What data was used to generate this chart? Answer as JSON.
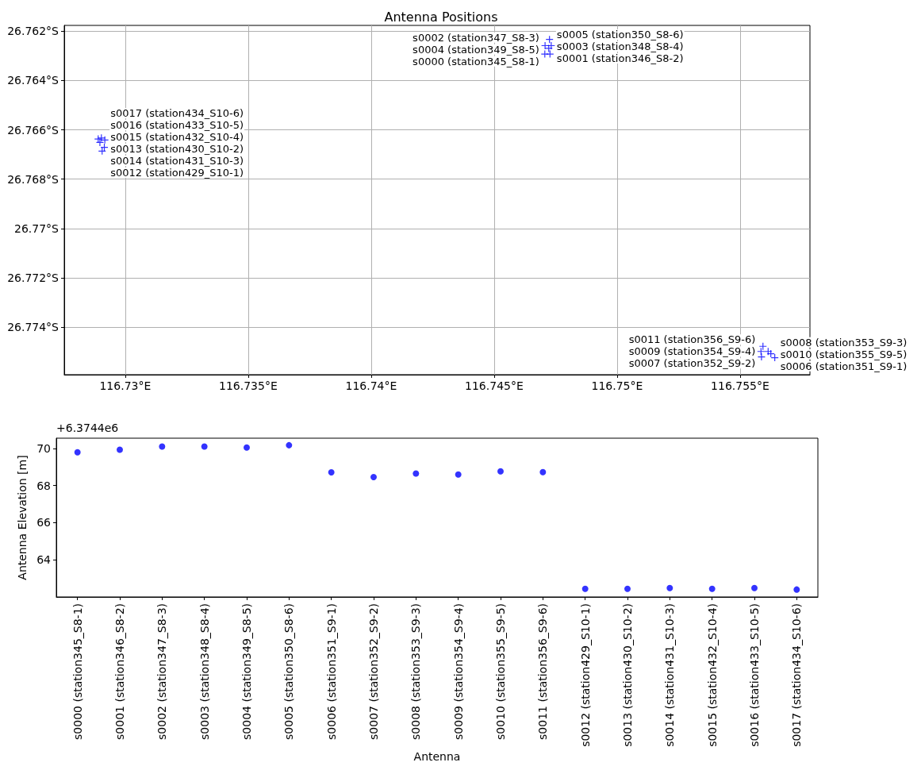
{
  "chart_data": [
    {
      "type": "scatter",
      "title": "Antenna Positions",
      "x": [
        116.74706,
        116.74727,
        116.74707,
        116.74732,
        116.74722,
        116.74725,
        116.75641,
        116.75587,
        116.75614,
        116.75585,
        116.75625,
        116.75593,
        116.72906,
        116.72897,
        116.72915,
        116.72917,
        116.7289,
        116.72903
      ],
      "values": [
        -26.76293,
        -26.76293,
        -26.76259,
        -26.76259,
        -26.7627,
        -26.76234,
        -26.77523,
        -26.7752,
        -26.77498,
        -26.77498,
        -26.77507,
        -26.77477,
        -26.76686,
        -26.76651,
        -26.76671,
        -26.76641,
        -26.76637,
        -26.76633
      ],
      "color": "#0000ff",
      "marker": "cross",
      "grid": true,
      "xlim": [
        116.72752,
        116.75784
      ],
      "ylim": [
        -26.77592,
        -26.76177
      ],
      "xticks": [
        {
          "value": 116.73,
          "label": "116.73°E"
        },
        {
          "value": 116.735,
          "label": "116.735°E"
        },
        {
          "value": 116.74,
          "label": "116.74°E"
        },
        {
          "value": 116.745,
          "label": "116.745°E"
        },
        {
          "value": 116.75,
          "label": "116.75°E"
        },
        {
          "value": 116.755,
          "label": "116.755°E"
        }
      ],
      "yticks": [
        {
          "value": -26.774,
          "label": "26.774°S"
        },
        {
          "value": -26.772,
          "label": "26.772°S"
        },
        {
          "value": -26.77,
          "label": "26.77°S"
        },
        {
          "value": -26.768,
          "label": "26.768°S"
        },
        {
          "value": -26.766,
          "label": "26.766°S"
        },
        {
          "value": -26.764,
          "label": "26.764°S"
        },
        {
          "value": -26.762,
          "label": "26.762°S"
        }
      ],
      "annotations": [
        {
          "text": "s0000 (station345_S8-1)",
          "x": 116.74706,
          "y": -26.76293
        },
        {
          "text": "s0001 (station346_S8-2)",
          "x": 116.74727,
          "y": -26.76293
        },
        {
          "text": "s0002 (station347_S8-3)",
          "x": 116.74707,
          "y": -26.76259
        },
        {
          "text": "s0003 (station348_S8-4)",
          "x": 116.74732,
          "y": -26.76259
        },
        {
          "text": "s0004 (station349_S8-5)",
          "x": 116.74722,
          "y": -26.7627
        },
        {
          "text": "s0005 (station350_S8-6)",
          "x": 116.74725,
          "y": -26.76234
        },
        {
          "text": "s0006 (station351_S9-1)",
          "x": 116.75641,
          "y": -26.77523
        },
        {
          "text": "s0007 (station352_S9-2)",
          "x": 116.75587,
          "y": -26.7752
        },
        {
          "text": "s0008 (station353_S9-3)",
          "x": 116.75614,
          "y": -26.77498
        },
        {
          "text": "s0009 (station354_S9-4)",
          "x": 116.75585,
          "y": -26.77498
        },
        {
          "text": "s0010 (station355_S9-5)",
          "x": 116.75625,
          "y": -26.77507
        },
        {
          "text": "s0011 (station356_S9-6)",
          "x": 116.75593,
          "y": -26.77477
        },
        {
          "text": "s0012 (station429_S10-1)",
          "x": 116.72906,
          "y": -26.76686
        },
        {
          "text": "s0013 (station430_S10-2)",
          "x": 116.72897,
          "y": -26.76651
        },
        {
          "text": "s0014 (station431_S10-3)",
          "x": 116.72915,
          "y": -26.76671
        },
        {
          "text": "s0015 (station432_S10-4)",
          "x": 116.72917,
          "y": -26.76641
        },
        {
          "text": "s0016 (station433_S10-5)",
          "x": 116.7289,
          "y": -26.76637
        },
        {
          "text": "s0017 (station434_S10-6)",
          "x": 116.72903,
          "y": -26.76633
        }
      ]
    },
    {
      "type": "scatter",
      "xlabel": "Antenna",
      "ylabel": "Antenna Elevation [m]",
      "annotations": [
        "+6.3744e6"
      ],
      "categories": [
        "s0000 (station345_S8-1)",
        "s0001 (station346_S8-2)",
        "s0002 (station347_S8-3)",
        "s0003 (station348_S8-4)",
        "s0004 (station349_S8-5)",
        "s0005 (station350_S8-6)",
        "s0006 (station351_S9-1)",
        "s0007 (station352_S9-2)",
        "s0008 (station353_S9-3)",
        "s0009 (station354_S9-4)",
        "s0010 (station355_S9-5)",
        "s0011 (station356_S9-6)",
        "s0012 (station429_S10-1)",
        "s0013 (station430_S10-2)",
        "s0014 (station431_S10-3)",
        "s0015 (station432_S10-4)",
        "s0016 (station433_S10-5)",
        "s0017 (station434_S10-6)"
      ],
      "values": [
        69.8,
        69.94,
        70.11,
        70.11,
        70.06,
        70.18,
        68.72,
        68.46,
        68.65,
        68.6,
        68.77,
        68.73,
        62.43,
        62.43,
        62.47,
        62.43,
        62.47,
        62.39
      ],
      "color": "#0000ff",
      "marker": "circle",
      "ylim": [
        61.99,
        70.56
      ],
      "yticks": [
        64,
        66,
        68,
        70
      ]
    }
  ]
}
